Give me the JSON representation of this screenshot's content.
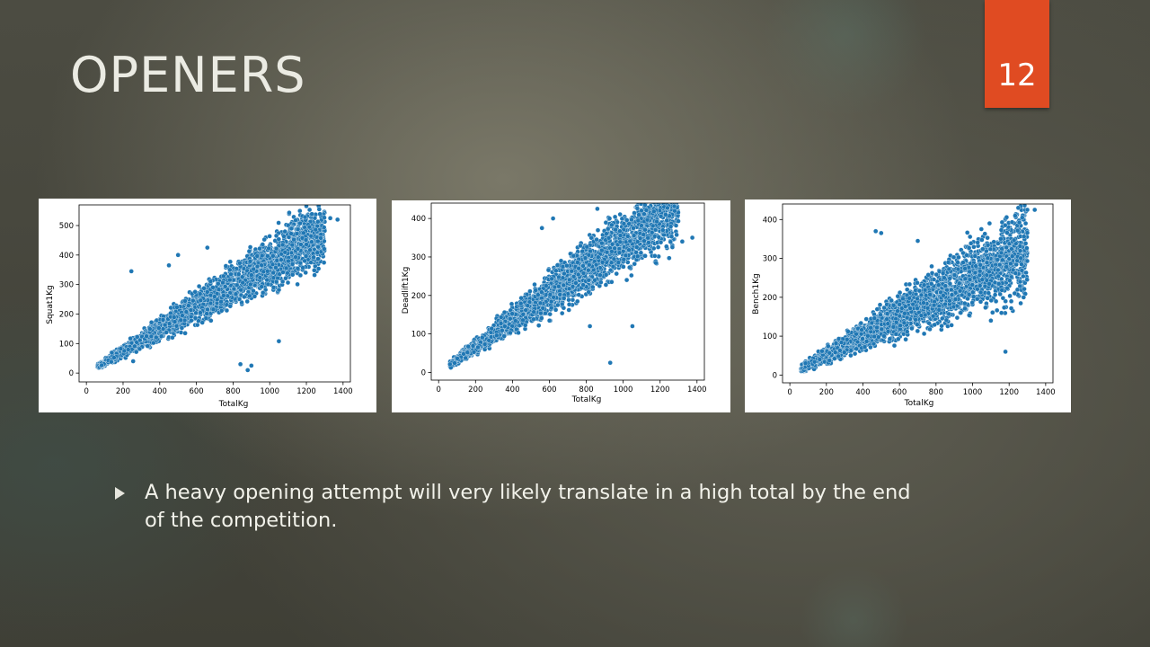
{
  "slide": {
    "title": "OPENERS",
    "number": "12",
    "bullet": "A heavy opening attempt will very likely translate in a high total by the end of the competition."
  },
  "colors": {
    "background": "#45453c",
    "accent": "#e04b22",
    "point": "#1f77b4"
  },
  "chart_data": [
    {
      "type": "scatter",
      "xlabel": "TotalKg",
      "ylabel": "Squat1Kg",
      "xlim": [
        -40,
        1440
      ],
      "ylim": [
        -30,
        570
      ],
      "xticks": [
        0,
        200,
        400,
        600,
        800,
        1000,
        1200,
        1400
      ],
      "yticks": [
        0,
        100,
        200,
        300,
        400,
        500
      ],
      "trend": {
        "ratio": 0.37,
        "spread_low": 0.24,
        "spread_high": 0.5
      },
      "outliers": [
        [
          245,
          345
        ],
        [
          1050,
          108
        ],
        [
          255,
          40
        ],
        [
          840,
          30
        ],
        [
          880,
          10
        ],
        [
          900,
          25
        ],
        [
          1270,
          555
        ],
        [
          1330,
          525
        ],
        [
          1370,
          520
        ],
        [
          500,
          400
        ],
        [
          450,
          365
        ],
        [
          660,
          425
        ]
      ]
    },
    {
      "type": "scatter",
      "xlabel": "TotalKg",
      "ylabel": "Deadlift1Kg",
      "xlim": [
        -40,
        1440
      ],
      "ylim": [
        -20,
        440
      ],
      "xticks": [
        0,
        200,
        400,
        600,
        800,
        1000,
        1200,
        1400
      ],
      "yticks": [
        0,
        100,
        200,
        300,
        400
      ],
      "trend": {
        "ratio": 0.35,
        "spread_low": 0.22,
        "spread_high": 0.46
      },
      "outliers": [
        [
          930,
          25
        ],
        [
          820,
          120
        ],
        [
          1050,
          120
        ],
        [
          1375,
          350
        ],
        [
          1320,
          340
        ],
        [
          860,
          425
        ],
        [
          620,
          400
        ],
        [
          560,
          375
        ],
        [
          1230,
          410
        ]
      ]
    },
    {
      "type": "scatter",
      "xlabel": "TotalKg",
      "ylabel": "Bench1Kg",
      "xlim": [
        -40,
        1440
      ],
      "ylim": [
        -20,
        440
      ],
      "xticks": [
        0,
        200,
        400,
        600,
        800,
        1000,
        1200,
        1400
      ],
      "yticks": [
        0,
        100,
        200,
        300,
        400
      ],
      "trend": {
        "ratio": 0.25,
        "spread_low": 0.12,
        "spread_high": 0.38
      },
      "outliers": [
        [
          1180,
          60
        ],
        [
          1230,
          210
        ],
        [
          1300,
          425
        ],
        [
          1340,
          425
        ],
        [
          1250,
          430
        ],
        [
          700,
          345
        ],
        [
          470,
          370
        ],
        [
          500,
          365
        ],
        [
          1100,
          140
        ]
      ]
    }
  ]
}
